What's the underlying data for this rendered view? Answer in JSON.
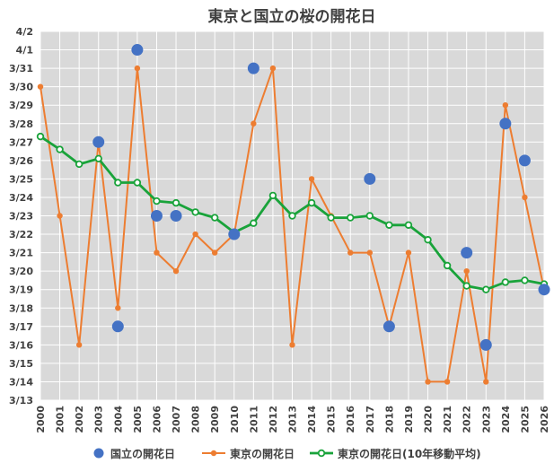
{
  "chart_data": {
    "type": "line",
    "title": "東京と国立の桜の開花日",
    "categories": [
      "2000",
      "2001",
      "2002",
      "2003",
      "2004",
      "2005",
      "2006",
      "2007",
      "2008",
      "2009",
      "2010",
      "2011",
      "2012",
      "2013",
      "2014",
      "2015",
      "2016",
      "2017",
      "2018",
      "2019",
      "2020",
      "2021",
      "2022",
      "2023",
      "2024",
      "2025",
      "2026"
    ],
    "y_ticks": [
      "3/13",
      "3/14",
      "3/15",
      "3/16",
      "3/17",
      "3/18",
      "3/19",
      "3/20",
      "3/21",
      "3/22",
      "3/23",
      "3/24",
      "3/25",
      "3/26",
      "3/27",
      "3/28",
      "3/29",
      "3/30",
      "3/31",
      "4/1",
      "4/2"
    ],
    "ylim": [
      0,
      20
    ],
    "y_unit_note": "values are days after 3/13",
    "series": [
      {
        "name": "国立の開花日",
        "kind": "markers",
        "color": "#4472C4",
        "values": [
          null,
          null,
          null,
          14,
          4,
          19,
          10,
          10,
          null,
          null,
          9,
          18,
          null,
          null,
          null,
          null,
          null,
          12,
          4,
          null,
          null,
          null,
          8,
          3,
          15,
          13,
          6
        ]
      },
      {
        "name": "東京の開花日",
        "kind": "line-dots",
        "color": "#ED7D31",
        "values": [
          17,
          10,
          3,
          14,
          5,
          18,
          8,
          7,
          9,
          8,
          9,
          15,
          18,
          3,
          12,
          10,
          8,
          8,
          4,
          8,
          1,
          1,
          7,
          1,
          16,
          11,
          6
        ]
      },
      {
        "name": "東京の開花日(10年移動平均)",
        "kind": "line-hollow",
        "color": "#19A33A",
        "values": [
          14.3,
          13.6,
          12.8,
          13.1,
          11.8,
          11.8,
          10.8,
          10.7,
          10.2,
          9.9,
          9.1,
          9.6,
          11.1,
          10.0,
          10.7,
          9.9,
          9.9,
          10.0,
          9.5,
          9.5,
          8.7,
          7.3,
          6.2,
          6.0,
          6.4,
          6.5,
          6.3
        ]
      }
    ],
    "legend_position": "bottom",
    "grid": true
  }
}
